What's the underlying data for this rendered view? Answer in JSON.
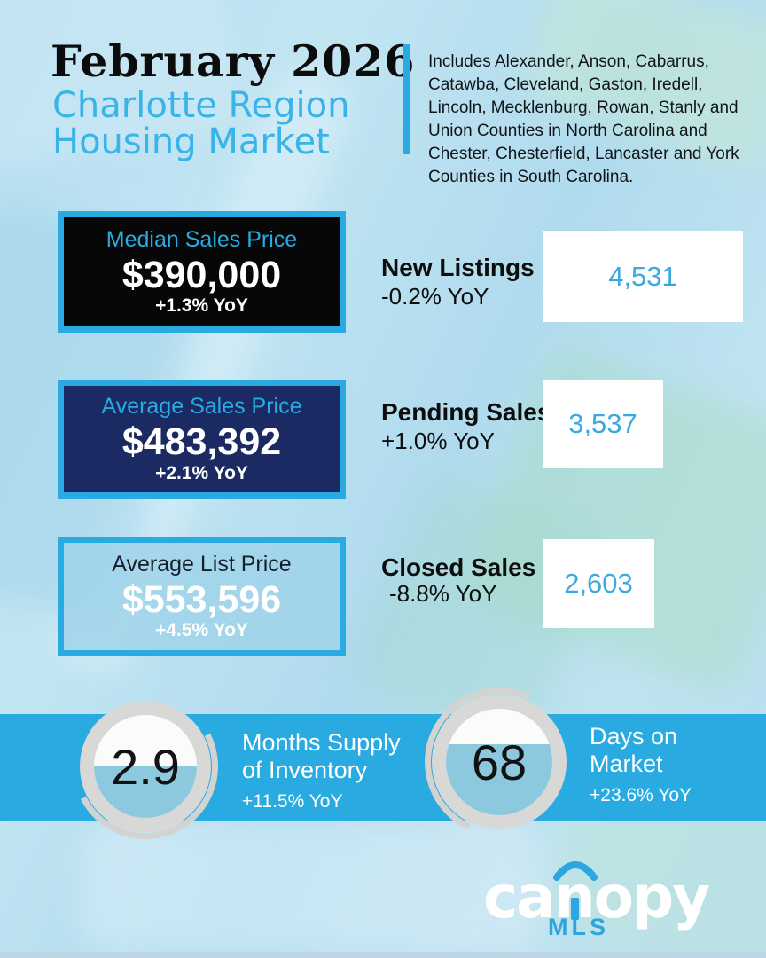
{
  "header": {
    "title": "February 2026",
    "subtitle_line1": "Charlotte Region",
    "subtitle_line2": "Housing Market",
    "description": "Includes Alexander, Anson, Cabarrus, Catawba, Cleveland, Gaston, Iredell, Lincoln, Mecklenburg, Rowan, Stanly and Union Counties in North Carolina and Chester, Chesterfield, Lancaster and York Counties in South Carolina."
  },
  "price_cards": [
    {
      "title": "Median Sales Price",
      "value": "$390,000",
      "yoy": "+1.3% YoY"
    },
    {
      "title": "Average Sales Price",
      "value": "$483,392",
      "yoy": "+2.1% YoY"
    },
    {
      "title": "Average List Price",
      "value": "$553,596",
      "yoy": "+4.5% YoY"
    }
  ],
  "metrics": [
    {
      "label": "New Listings",
      "yoy": "-0.2% YoY",
      "value": "4,531"
    },
    {
      "label": "Pending Sales",
      "yoy": "+1.0% YoY",
      "value": "3,537"
    },
    {
      "label": "Closed Sales",
      "yoy": "-8.8% YoY",
      "value": "2,603"
    }
  ],
  "gauges": [
    {
      "value": "2.9",
      "label_line1": "Months Supply",
      "label_line2": "of Inventory",
      "yoy": "+11.5% YoY",
      "fill_percent": 50
    },
    {
      "value": "68",
      "label_line1": "Days on",
      "label_line2": "Market",
      "yoy": "+23.6% YoY",
      "fill_percent": 67
    }
  ],
  "logo": {
    "brand": "canopy",
    "brand_sub": "MLS"
  },
  "colors": {
    "accent": "#29ABE2",
    "subtitle_blue": "#38B4E8",
    "navy": "#1C2A63",
    "card_black": "#070707",
    "gauge_fill": "#8CC8DE",
    "value_blue": "#3AA9E0",
    "logo_blue": "#2BA6DE"
  }
}
